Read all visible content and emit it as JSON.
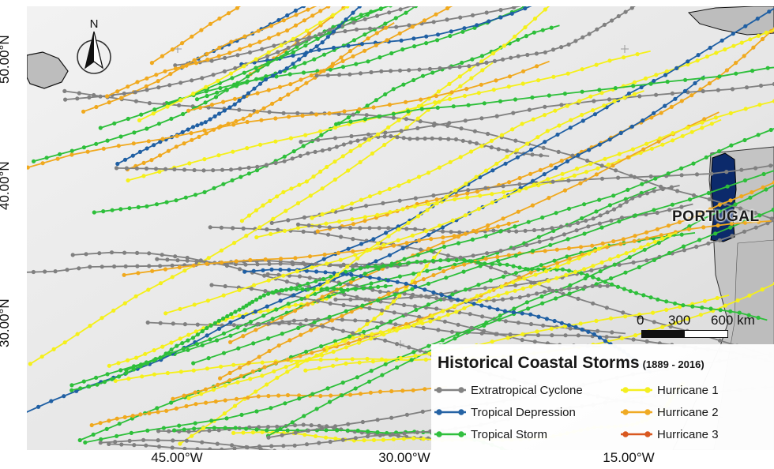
{
  "legend": {
    "title": "Historical Coastal Storms",
    "years": "(1889 - 2016)",
    "items": [
      {
        "label": "Extratropical Cyclone",
        "color": "#808080"
      },
      {
        "label": "Hurricane 1",
        "color": "#f5f01a"
      },
      {
        "label": "Tropical Depression",
        "color": "#1f5fa3"
      },
      {
        "label": "Hurricane 2",
        "color": "#f0a91e"
      },
      {
        "label": "Tropical Storm",
        "color": "#2dbf3a"
      },
      {
        "label": "Hurricane 3",
        "color": "#d9541a"
      }
    ]
  },
  "country_label": "PORTUGAL",
  "country_color": "#0c2a6b",
  "north_label": "N",
  "latitude_labels": [
    "50.00°N",
    "40.00°N",
    "30.00°N"
  ],
  "longitude_labels": [
    "45.00°W",
    "30.00°W",
    "15.00°W"
  ],
  "scale": {
    "ticks": [
      "0",
      "300",
      "600 km"
    ]
  }
}
